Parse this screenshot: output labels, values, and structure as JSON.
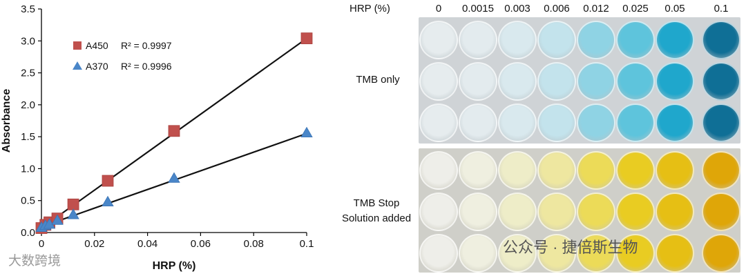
{
  "chart_data": {
    "type": "scatter",
    "xlabel": "HRP (%)",
    "ylabel": "Absorbance",
    "xlim": [
      0,
      0.1
    ],
    "ylim": [
      0,
      3.5
    ],
    "xticks": [
      "0",
      "0.02",
      "0.04",
      "0.06",
      "0.08",
      "0.1"
    ],
    "yticks": [
      "0.0",
      "0.5",
      "1.0",
      "1.5",
      "2.0",
      "2.5",
      "3.0",
      "3.5"
    ],
    "legend_position": "top-left",
    "series": [
      {
        "name": "A450",
        "r2": "R² = 0.9997",
        "marker": "square",
        "color": "#c0504d",
        "points": [
          [
            0,
            0.07
          ],
          [
            0.0015,
            0.12
          ],
          [
            0.003,
            0.16
          ],
          [
            0.006,
            0.22
          ],
          [
            0.012,
            0.44
          ],
          [
            0.025,
            0.81
          ],
          [
            0.05,
            1.59
          ],
          [
            0.1,
            3.04
          ]
        ],
        "fit": [
          [
            0,
            0.07
          ],
          [
            0.1,
            3.04
          ]
        ]
      },
      {
        "name": "A370",
        "r2": "R² = 0.9996",
        "marker": "triangle",
        "color": "#4a86c8",
        "points": [
          [
            0,
            0.08
          ],
          [
            0.0015,
            0.11
          ],
          [
            0.003,
            0.13
          ],
          [
            0.006,
            0.19
          ],
          [
            0.012,
            0.28
          ],
          [
            0.025,
            0.48
          ],
          [
            0.05,
            0.85
          ],
          [
            0.1,
            1.56
          ]
        ],
        "fit": [
          [
            0,
            0.09
          ],
          [
            0.1,
            1.55
          ]
        ]
      }
    ]
  },
  "plate": {
    "header_label": "HRP (%)",
    "concentrations": [
      "0",
      "0.0015",
      "0.003",
      "0.006",
      "0.012",
      "0.025",
      "0.05",
      "0.1"
    ],
    "row_label_top": "TMB only",
    "row_label_bottom_1": "TMB Stop",
    "row_label_bottom_2": "Solution added",
    "blue_colors": [
      "#e6ecee",
      "#e3ebee",
      "#d9e9ee",
      "#c3e3ec",
      "#8fd3e4",
      "#5ec4dc",
      "#1fa7cc",
      "#0f6f96"
    ],
    "yellow_colors": [
      "#eeeee9",
      "#efefe0",
      "#eeedc8",
      "#eee7a0",
      "#ecdb58",
      "#e9cc22",
      "#e6bf14",
      "#dfa608"
    ]
  },
  "watermarks": {
    "left": "大数跨境",
    "right": "公众号 · 捷倍斯生物"
  }
}
